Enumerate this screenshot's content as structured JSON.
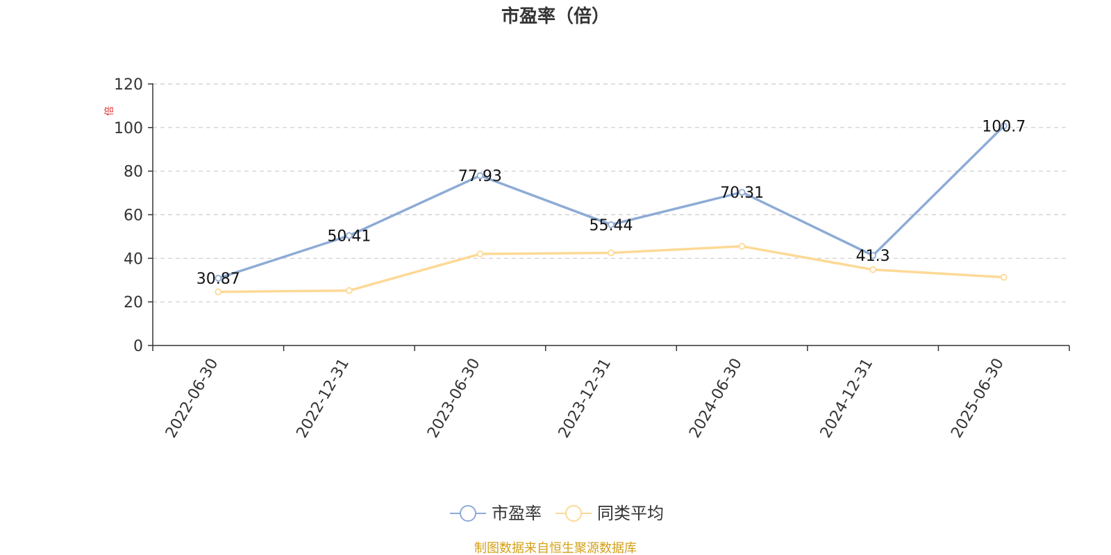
{
  "chart_data": {
    "type": "line",
    "title": "市盈率（倍）",
    "ylabel": "倍",
    "ylim": [
      0,
      120
    ],
    "yticks": [
      0,
      20,
      40,
      60,
      80,
      100,
      120
    ],
    "grid": true,
    "legend_position": "bottom-center",
    "categories": [
      "2022-06-30",
      "2022-12-31",
      "2023-06-30",
      "2023-12-31",
      "2024-06-30",
      "2024-12-31",
      "2025-06-30"
    ],
    "series": [
      {
        "name": "市盈率",
        "values": [
          30.87,
          50.41,
          77.93,
          55.44,
          70.31,
          41.3,
          100.7
        ],
        "color": "#8eabd6",
        "show_labels": true
      },
      {
        "name": "同类平均",
        "values": [
          24.6,
          25.2,
          42.0,
          42.5,
          45.5,
          34.8,
          31.3
        ],
        "color": "#fdd995",
        "show_labels": false
      }
    ]
  },
  "source_note": "制图数据来自恒生聚源数据库",
  "colors": {
    "axis": "#333333",
    "grid": "#cccccc",
    "unit": "#e03030",
    "source": "#d4a017"
  }
}
